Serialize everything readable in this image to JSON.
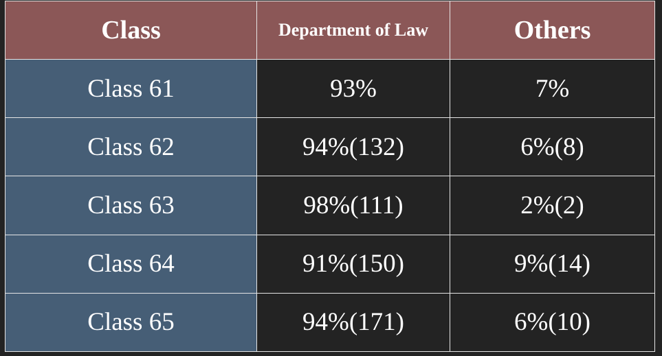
{
  "table": {
    "headers": [
      "Class",
      "Department of Law",
      "Others"
    ],
    "rows": [
      {
        "class": "Class 61",
        "law": "93%",
        "others": "7%"
      },
      {
        "class": "Class 62",
        "law": "94%(132)",
        "others": "6%(8)"
      },
      {
        "class": "Class 63",
        "law": "98%(111)",
        "others": "2%(2)"
      },
      {
        "class": "Class 64",
        "law": "91%(150)",
        "others": "9%(14)"
      },
      {
        "class": "Class 65",
        "law": "94%(171)",
        "others": "6%(10)"
      }
    ]
  },
  "colors": {
    "header_bg": "#8b5757",
    "class_col_bg": "#465e76",
    "value_bg": "#232323",
    "class_header_text": "#d7dcf7"
  }
}
